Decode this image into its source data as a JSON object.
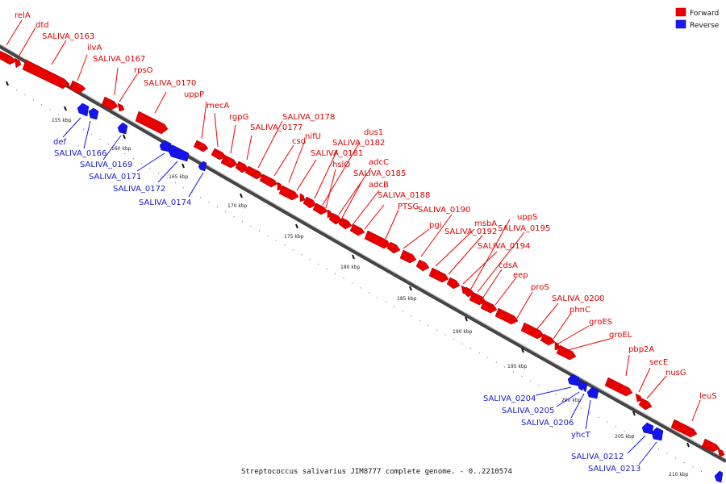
{
  "legend": {
    "forward": {
      "label": "Forward",
      "color": "#ee0000"
    },
    "reverse": {
      "label": "Reverse",
      "color": "#1a1aee"
    }
  },
  "caption": "Streptococcus salivarius JIM8777 complete genome. - 0..2210574",
  "ticks": [
    "155 kbp",
    "160 kbp",
    "165 kbp",
    "170 kbp",
    "175 kbp",
    "180 kbp",
    "185 kbp",
    "190 kbp",
    "195 kbp",
    "200 kbp",
    "205 kbp",
    "210 kbp"
  ],
  "forward_genes": [
    "relA",
    "dtd",
    "SALIVA_0163",
    "ilvA",
    "SALIVA_0167",
    "rpsO",
    "SALIVA_0170",
    "uppP",
    "mecA",
    "rgpG",
    "SALIVA_0177",
    "SALIVA_0178",
    "csd",
    "nifU",
    "SALIVA_0181",
    "SALIVA_0182",
    "dus1",
    "hslO",
    "adcC",
    "SALIVA_0185",
    "adcB",
    "SALIVA_0188",
    "PTSG",
    "pgi",
    "SALIVA_0190",
    "msbA",
    "SALIVA_0192",
    "uppS",
    "SALIVA_0195",
    "SALIVA_0194",
    "cdsA",
    "eep",
    "proS",
    "SALIVA_0200",
    "phnC",
    "groES",
    "groEL",
    "pbp2A",
    "secE",
    "nusG",
    "leuS"
  ],
  "reverse_genes": [
    "def",
    "SALIVA_0166",
    "SALIVA_0169",
    "SALIVA_0171",
    "SALIVA_0172",
    "SALIVA_0174",
    "SALIVA_0204",
    "SALIVA_0205",
    "SALIVA_0206",
    "yhcT",
    "SALIVA_0212",
    "SALIVA_0213"
  ]
}
